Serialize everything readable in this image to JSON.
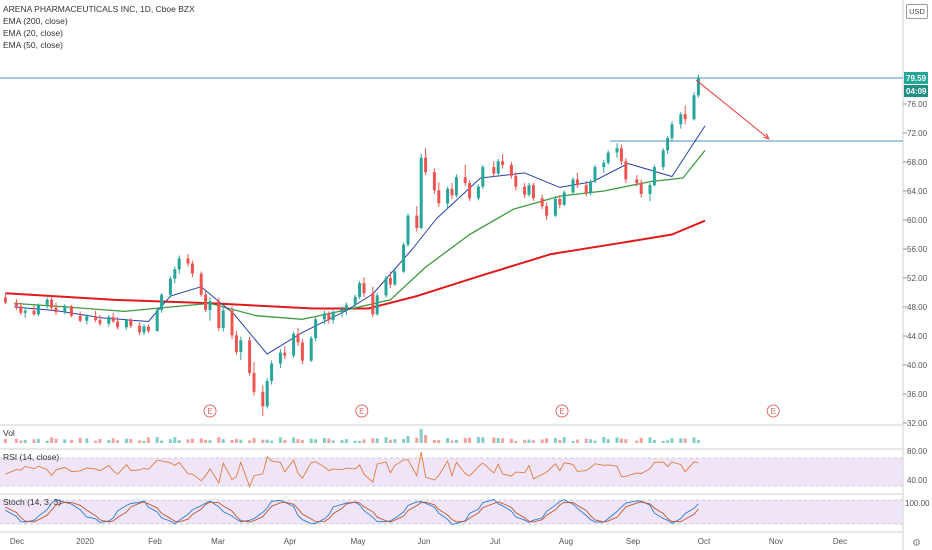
{
  "header": {
    "title": "ARENA PHARMACEUTICALS INC, 1D, Cboe BZX",
    "ema200": "EMA (200, close)",
    "ema20": "EMA (20, close)",
    "ema50": "EMA (50, close)",
    "currency": "USD"
  },
  "price_tags": {
    "last": "79.59",
    "countdown": "04:09"
  },
  "panels": {
    "vol": "Vol",
    "rsi": "RSI (14, close)",
    "stoch": "Stoch (14, 3, 3)"
  },
  "earnings_marker": "E",
  "colors": {
    "up": "#26a69a",
    "down": "#ef5350",
    "ema20": "#2840a8",
    "ema50": "#3f9a3f",
    "ema200": "#e0191b",
    "hline": "#4a90c4",
    "arrow": "#e83c3c",
    "rsi": "#e07d3c",
    "stochK": "#2a7fd6",
    "stochD": "#c2572a",
    "band": "#e8d9f5"
  },
  "chart_data": {
    "type": "candlestick",
    "title": "ARENA PHARMACEUTICALS INC, 1D, Cboe BZX",
    "x_axis_labels": [
      "Dec",
      "2020",
      "Feb",
      "Mar",
      "Apr",
      "May",
      "Jun",
      "Jul",
      "Aug",
      "Sep",
      "Oct",
      "Nov",
      "Dec"
    ],
    "y_axis_labels": [
      "32.00",
      "36.00",
      "40.00",
      "44.00",
      "48.00",
      "52.00",
      "56.00",
      "60.00",
      "64.00",
      "68.00",
      "72.00",
      "76.00"
    ],
    "y_range": [
      30,
      83
    ],
    "last_price": 79.59,
    "horizontal_lines": [
      79.59,
      70.9
    ],
    "arrow": {
      "from": {
        "date": "2020-10-06",
        "price": 79.3
      },
      "to": {
        "date": "2020-11-08",
        "price": 71.2
      }
    },
    "earnings_dates": [
      "2020-02-28",
      "2020-05-07",
      "2020-08-06",
      "2020-11-10"
    ],
    "ema20_points": [
      [
        "2019-12-01",
        48.0
      ],
      [
        "2019-12-20",
        47.5
      ],
      [
        "2020-01-10",
        46.5
      ],
      [
        "2020-01-31",
        46.0
      ],
      [
        "2020-02-10",
        49.5
      ],
      [
        "2020-02-24",
        50.8
      ],
      [
        "2020-03-10",
        47.0
      ],
      [
        "2020-03-25",
        41.5
      ],
      [
        "2020-04-10",
        44.5
      ],
      [
        "2020-04-30",
        47.5
      ],
      [
        "2020-05-12",
        49.8
      ],
      [
        "2020-05-30",
        56.0
      ],
      [
        "2020-06-10",
        60.2
      ],
      [
        "2020-06-30",
        65.8
      ],
      [
        "2020-07-20",
        66.5
      ],
      [
        "2020-08-05",
        64.5
      ],
      [
        "2020-08-20",
        65.3
      ],
      [
        "2020-09-05",
        67.8
      ],
      [
        "2020-09-25",
        66.0
      ],
      [
        "2020-10-10",
        73.0
      ]
    ],
    "ema50_points": [
      [
        "2019-12-01",
        48.5
      ],
      [
        "2019-12-25",
        48.0
      ],
      [
        "2020-01-20",
        47.4
      ],
      [
        "2020-02-10",
        48.0
      ],
      [
        "2020-02-28",
        48.5
      ],
      [
        "2020-03-20",
        46.8
      ],
      [
        "2020-04-10",
        46.3
      ],
      [
        "2020-04-30",
        47.6
      ],
      [
        "2020-05-20",
        49.0
      ],
      [
        "2020-06-05",
        53.5
      ],
      [
        "2020-06-25",
        58.0
      ],
      [
        "2020-07-15",
        61.5
      ],
      [
        "2020-08-05",
        63.3
      ],
      [
        "2020-08-25",
        64.0
      ],
      [
        "2020-09-15",
        65.3
      ],
      [
        "2020-09-30",
        65.8
      ],
      [
        "2020-10-10",
        69.6
      ]
    ],
    "ema200_points": [
      [
        "2019-11-27",
        49.9
      ],
      [
        "2020-01-15",
        49.0
      ],
      [
        "2020-03-01",
        48.5
      ],
      [
        "2020-04-15",
        47.8
      ],
      [
        "2020-05-10",
        47.8
      ],
      [
        "2020-06-01",
        49.5
      ],
      [
        "2020-07-01",
        52.4
      ],
      [
        "2020-08-01",
        55.3
      ],
      [
        "2020-09-01",
        56.8
      ],
      [
        "2020-09-25",
        58.0
      ],
      [
        "2020-10-10",
        59.9
      ]
    ],
    "candles_ohlc": [
      [
        "2019-11-27",
        49.3,
        49.8,
        48.4,
        48.6
      ],
      [
        "2019-12-02",
        48.6,
        49.1,
        47.6,
        48.1
      ],
      [
        "2019-12-04",
        48.1,
        48.6,
        46.9,
        47.2
      ],
      [
        "2019-12-06",
        47.2,
        47.9,
        46.5,
        47.5
      ],
      [
        "2019-12-10",
        47.5,
        48.2,
        46.8,
        47.0
      ],
      [
        "2019-12-12",
        47.0,
        48.5,
        46.7,
        48.3
      ],
      [
        "2019-12-16",
        48.3,
        49.3,
        47.8,
        49.0
      ],
      [
        "2019-12-18",
        49.0,
        49.5,
        47.6,
        47.9
      ],
      [
        "2019-12-20",
        47.9,
        48.6,
        46.9,
        47.3
      ],
      [
        "2019-12-24",
        47.3,
        48.4,
        47.0,
        48.1
      ],
      [
        "2019-12-27",
        48.1,
        48.3,
        46.6,
        46.8
      ],
      [
        "2019-12-31",
        46.8,
        47.4,
        45.9,
        46.1
      ],
      [
        "2020-01-03",
        46.1,
        47.0,
        45.6,
        46.7
      ],
      [
        "2020-01-07",
        46.7,
        47.5,
        45.9,
        46.2
      ],
      [
        "2020-01-09",
        46.2,
        46.9,
        45.4,
        45.7
      ],
      [
        "2020-01-13",
        45.7,
        46.9,
        45.3,
        46.6
      ],
      [
        "2020-01-15",
        46.6,
        47.2,
        45.8,
        46.0
      ],
      [
        "2020-01-17",
        46.0,
        46.6,
        44.9,
        45.2
      ],
      [
        "2020-01-21",
        45.2,
        46.4,
        44.9,
        46.2
      ],
      [
        "2020-01-23",
        46.2,
        46.5,
        45.1,
        45.4
      ],
      [
        "2020-01-27",
        45.4,
        45.9,
        44.1,
        44.5
      ],
      [
        "2020-01-29",
        44.5,
        45.6,
        44.1,
        45.3
      ],
      [
        "2020-01-31",
        45.3,
        45.6,
        44.4,
        44.7
      ],
      [
        "2020-02-04",
        44.7,
        47.8,
        44.6,
        47.6
      ],
      [
        "2020-02-06",
        47.6,
        49.9,
        47.2,
        49.7
      ],
      [
        "2020-02-10",
        49.7,
        52.2,
        49.3,
        51.9
      ],
      [
        "2020-02-12",
        51.9,
        53.6,
        51.3,
        53.2
      ],
      [
        "2020-02-14",
        53.2,
        55.1,
        52.6,
        54.7
      ],
      [
        "2020-02-18",
        54.7,
        55.3,
        53.6,
        54.0
      ],
      [
        "2020-02-20",
        54.0,
        54.4,
        52.1,
        52.6
      ],
      [
        "2020-02-24",
        52.6,
        52.9,
        49.4,
        49.7
      ],
      [
        "2020-02-26",
        49.7,
        50.2,
        47.3,
        47.6
      ],
      [
        "2020-02-28",
        47.6,
        49.3,
        46.1,
        48.8
      ],
      [
        "2020-03-03",
        48.8,
        49.3,
        44.7,
        45.1
      ],
      [
        "2020-03-05",
        45.1,
        47.9,
        44.6,
        47.5
      ],
      [
        "2020-03-09",
        47.5,
        48.1,
        43.6,
        44.1
      ],
      [
        "2020-03-11",
        44.1,
        44.7,
        41.4,
        41.8
      ],
      [
        "2020-03-13",
        41.8,
        43.9,
        40.7,
        43.4
      ],
      [
        "2020-03-17",
        43.4,
        43.9,
        38.5,
        38.9
      ],
      [
        "2020-03-19",
        38.9,
        40.4,
        35.8,
        36.3
      ],
      [
        "2020-03-23",
        36.3,
        37.2,
        33.0,
        34.3
      ],
      [
        "2020-03-25",
        34.3,
        38.2,
        34.0,
        37.8
      ],
      [
        "2020-03-27",
        37.8,
        40.6,
        37.3,
        40.2
      ],
      [
        "2020-03-31",
        40.2,
        42.2,
        39.6,
        41.7
      ],
      [
        "2020-04-02",
        41.7,
        42.6,
        40.8,
        41.3
      ],
      [
        "2020-04-06",
        41.3,
        44.6,
        41.0,
        44.3
      ],
      [
        "2020-04-08",
        44.3,
        45.1,
        42.6,
        43.1
      ],
      [
        "2020-04-10",
        43.1,
        43.6,
        40.1,
        40.6
      ],
      [
        "2020-04-14",
        40.6,
        44.0,
        40.4,
        43.7
      ],
      [
        "2020-04-16",
        43.7,
        46.6,
        43.3,
        46.3
      ],
      [
        "2020-04-20",
        46.3,
        47.5,
        45.6,
        47.1
      ],
      [
        "2020-04-22",
        47.1,
        47.4,
        45.7,
        46.2
      ],
      [
        "2020-04-24",
        46.2,
        47.6,
        45.7,
        47.3
      ],
      [
        "2020-04-28",
        47.3,
        48.1,
        46.6,
        47.7
      ],
      [
        "2020-04-30",
        47.7,
        48.6,
        46.9,
        48.3
      ],
      [
        "2020-05-04",
        48.3,
        49.7,
        47.8,
        49.4
      ],
      [
        "2020-05-06",
        49.4,
        51.6,
        49.1,
        51.3
      ],
      [
        "2020-05-08",
        51.3,
        52.1,
        49.4,
        49.9
      ],
      [
        "2020-05-12",
        49.9,
        50.8,
        46.6,
        47.0
      ],
      [
        "2020-05-14",
        47.0,
        49.9,
        46.8,
        49.6
      ],
      [
        "2020-05-18",
        49.6,
        52.3,
        49.3,
        52.0
      ],
      [
        "2020-05-20",
        52.0,
        52.9,
        50.6,
        51.1
      ],
      [
        "2020-05-22",
        51.1,
        53.3,
        50.9,
        52.9
      ],
      [
        "2020-05-26",
        52.9,
        56.9,
        52.7,
        56.6
      ],
      [
        "2020-05-28",
        56.6,
        60.9,
        56.3,
        60.6
      ],
      [
        "2020-06-01",
        60.6,
        61.9,
        58.4,
        58.9
      ],
      [
        "2020-06-03",
        58.9,
        69.1,
        58.7,
        68.6
      ],
      [
        "2020-06-05",
        68.6,
        69.9,
        66.2,
        66.6
      ],
      [
        "2020-06-09",
        66.6,
        67.1,
        63.6,
        64.1
      ],
      [
        "2020-06-11",
        64.1,
        65.2,
        61.8,
        62.3
      ],
      [
        "2020-06-15",
        62.3,
        64.6,
        61.6,
        64.3
      ],
      [
        "2020-06-17",
        64.3,
        65.1,
        62.9,
        63.4
      ],
      [
        "2020-06-19",
        63.4,
        66.3,
        63.1,
        65.9
      ],
      [
        "2020-06-23",
        65.9,
        67.6,
        64.7,
        65.1
      ],
      [
        "2020-06-25",
        65.1,
        65.5,
        62.6,
        63.0
      ],
      [
        "2020-06-29",
        63.0,
        64.9,
        62.7,
        64.6
      ],
      [
        "2020-07-01",
        64.6,
        67.6,
        64.3,
        67.3
      ],
      [
        "2020-07-06",
        67.3,
        68.1,
        66.0,
        66.4
      ],
      [
        "2020-07-08",
        66.4,
        68.4,
        66.2,
        68.1
      ],
      [
        "2020-07-10",
        68.1,
        69.1,
        67.1,
        67.6
      ],
      [
        "2020-07-14",
        67.6,
        68.0,
        65.7,
        66.1
      ],
      [
        "2020-07-16",
        66.1,
        66.6,
        64.1,
        64.6
      ],
      [
        "2020-07-20",
        64.6,
        65.1,
        63.0,
        63.5
      ],
      [
        "2020-07-22",
        63.5,
        65.1,
        63.2,
        64.8
      ],
      [
        "2020-07-24",
        64.8,
        65.1,
        62.6,
        63.0
      ],
      [
        "2020-07-28",
        63.0,
        63.5,
        61.5,
        61.9
      ],
      [
        "2020-07-30",
        61.9,
        62.4,
        60.0,
        60.6
      ],
      [
        "2020-08-03",
        60.6,
        63.3,
        60.4,
        62.9
      ],
      [
        "2020-08-05",
        62.9,
        63.4,
        61.6,
        62.1
      ],
      [
        "2020-08-07",
        62.1,
        64.1,
        61.9,
        63.8
      ],
      [
        "2020-08-11",
        63.8,
        65.9,
        63.4,
        65.6
      ],
      [
        "2020-08-13",
        65.6,
        66.5,
        64.4,
        64.8
      ],
      [
        "2020-08-17",
        64.8,
        65.4,
        63.3,
        63.7
      ],
      [
        "2020-08-19",
        63.7,
        65.6,
        63.4,
        65.3
      ],
      [
        "2020-08-21",
        65.3,
        67.6,
        65.1,
        67.3
      ],
      [
        "2020-08-25",
        67.3,
        68.3,
        66.5,
        67.9
      ],
      [
        "2020-08-27",
        67.9,
        69.6,
        67.6,
        69.3
      ],
      [
        "2020-08-31",
        69.3,
        70.6,
        68.6,
        69.9
      ],
      [
        "2020-09-02",
        69.9,
        70.4,
        67.6,
        68.1
      ],
      [
        "2020-09-04",
        68.1,
        68.5,
        65.1,
        65.6
      ],
      [
        "2020-09-09",
        65.6,
        66.2,
        64.6,
        65.1
      ],
      [
        "2020-09-11",
        65.1,
        65.6,
        63.1,
        63.6
      ],
      [
        "2020-09-15",
        63.6,
        65.1,
        62.6,
        64.8
      ],
      [
        "2020-09-17",
        64.8,
        67.6,
        64.6,
        67.3
      ],
      [
        "2020-09-21",
        67.3,
        69.9,
        66.9,
        69.6
      ],
      [
        "2020-09-23",
        69.6,
        71.6,
        69.1,
        71.3
      ],
      [
        "2020-09-25",
        71.3,
        73.6,
        70.9,
        73.2
      ],
      [
        "2020-09-29",
        73.2,
        74.9,
        72.6,
        74.6
      ],
      [
        "2020-10-01",
        74.6,
        75.8,
        73.2,
        73.9
      ],
      [
        "2020-10-05",
        73.9,
        77.6,
        73.7,
        77.2
      ],
      [
        "2020-10-07",
        77.2,
        80.1,
        76.9,
        79.59
      ]
    ]
  }
}
